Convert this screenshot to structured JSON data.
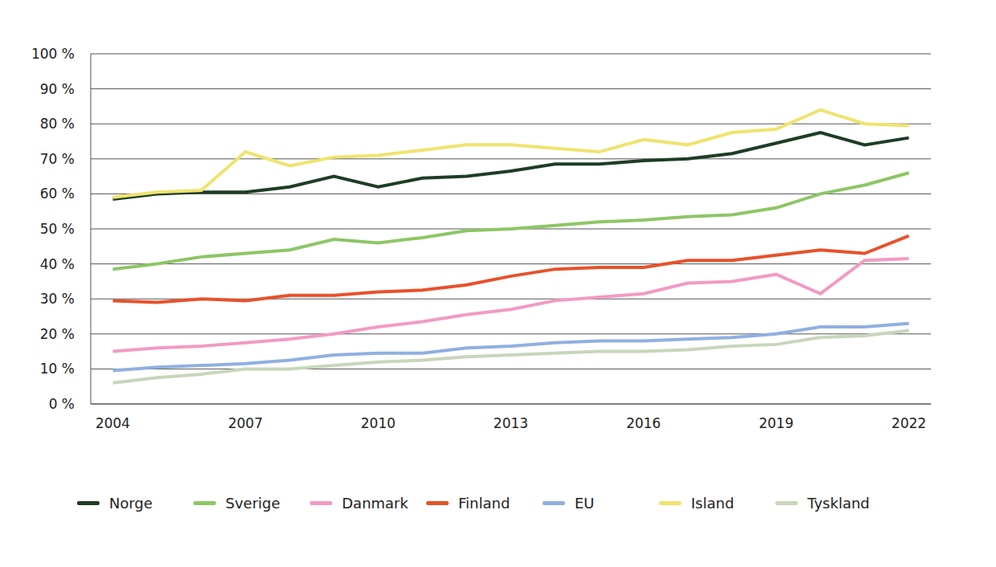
{
  "chart_data": {
    "type": "line",
    "x": [
      2004,
      2005,
      2006,
      2007,
      2008,
      2009,
      2010,
      2011,
      2012,
      2013,
      2014,
      2015,
      2016,
      2017,
      2018,
      2019,
      2020,
      2021,
      2022
    ],
    "xlim": [
      2003.5,
      2022.5
    ],
    "xticks": [
      2004,
      2007,
      2010,
      2013,
      2016,
      2019,
      2022
    ],
    "ylim": [
      0,
      100
    ],
    "yticks": [
      {
        "value": 0,
        "label": "0 %"
      },
      {
        "value": 10,
        "label": "10 %"
      },
      {
        "value": 20,
        "label": "20 %"
      },
      {
        "value": 30,
        "label": "30 %"
      },
      {
        "value": 40,
        "label": "40 %"
      },
      {
        "value": 50,
        "label": "50 %"
      },
      {
        "value": 60,
        "label": "60 %"
      },
      {
        "value": 70,
        "label": "70 %"
      },
      {
        "value": 80,
        "label": "80 %"
      },
      {
        "value": 90,
        "label": "90 %"
      },
      {
        "value": 100,
        "label": "100 %"
      }
    ],
    "grid": true,
    "legend": "bottom",
    "series": [
      {
        "name": "Norge",
        "color": "#1e3d24",
        "values": [
          58.5,
          60,
          60.5,
          60.5,
          62,
          65,
          62,
          64.5,
          65,
          66.5,
          68.5,
          68.5,
          69.5,
          70,
          71.5,
          74.5,
          77.5,
          74,
          76
        ]
      },
      {
        "name": "Sverige",
        "color": "#8dc665",
        "values": [
          38.5,
          40,
          42,
          43,
          44,
          47,
          46,
          47.5,
          49.5,
          50,
          51,
          52,
          52.5,
          53.5,
          54,
          56,
          60,
          62.5,
          66
        ]
      },
      {
        "name": "Danmark",
        "color": "#f29ac4",
        "values": [
          15,
          16,
          16.5,
          17.5,
          18.5,
          20,
          22,
          23.5,
          25.5,
          27,
          29.5,
          30.5,
          31.5,
          34.5,
          35,
          37,
          31.5,
          41,
          41.5
        ]
      },
      {
        "name": "Finland",
        "color": "#e8512a",
        "values": [
          29.5,
          29,
          30,
          29.5,
          31,
          31,
          32,
          32.5,
          34,
          36.5,
          38.5,
          39,
          39,
          41,
          41,
          42.5,
          44,
          43,
          48
        ]
      },
      {
        "name": "EU",
        "color": "#8fb0e0",
        "values": [
          9.5,
          10.5,
          11,
          11.5,
          12.5,
          14,
          14.5,
          14.5,
          16,
          16.5,
          17.5,
          18,
          18,
          18.5,
          19,
          20,
          22,
          22,
          23
        ]
      },
      {
        "name": "Island",
        "color": "#f0e36e",
        "values": [
          59,
          60.5,
          61,
          72,
          68,
          70.5,
          71,
          72.5,
          74,
          74,
          73,
          72,
          75.5,
          74,
          77.5,
          78.5,
          84,
          80,
          79.5
        ]
      },
      {
        "name": "Tyskland",
        "color": "#c8d6bc",
        "values": [
          6,
          7.5,
          8.5,
          10,
          10,
          11,
          12,
          12.5,
          13.5,
          14,
          14.5,
          15,
          15,
          15.5,
          16.5,
          17,
          19,
          19.5,
          21
        ]
      }
    ]
  }
}
